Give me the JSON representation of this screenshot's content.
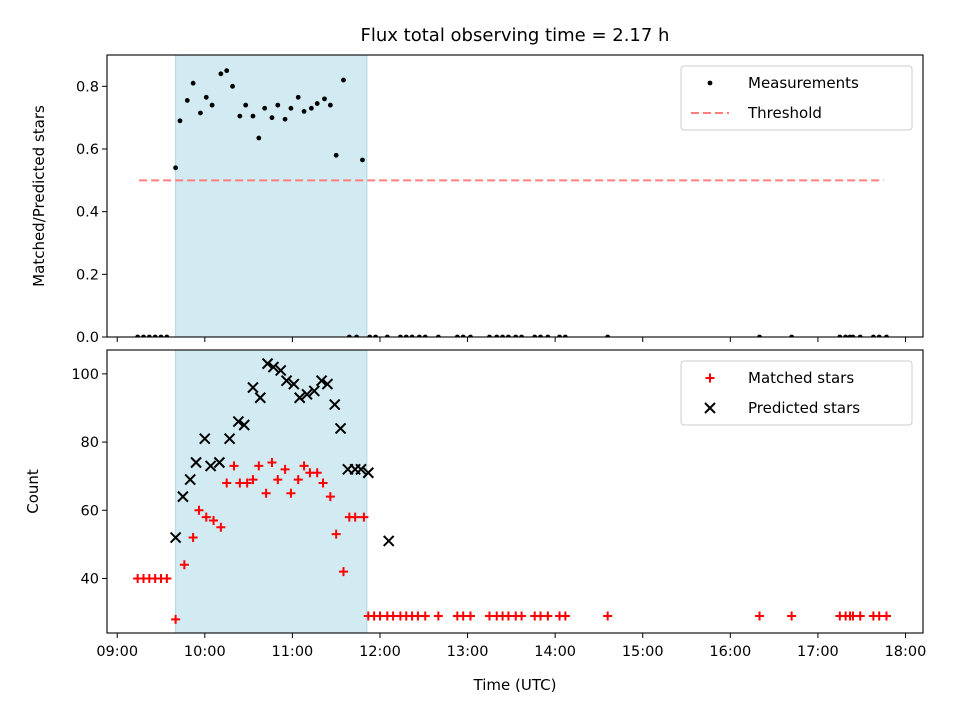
{
  "chart_data": [
    {
      "type": "scatter",
      "title": "Flux total observing time = 2.17 h",
      "ylabel": "Matched/Predicted stars",
      "xlabel": "",
      "x_unit": "time of day (UTC)",
      "xlim": [
        "08:53",
        "18:12"
      ],
      "ylim": [
        0.0,
        0.9
      ],
      "yticks": [
        "0.0",
        "0.2",
        "0.4",
        "0.6",
        "0.8"
      ],
      "xticks": [
        "09:00",
        "10:00",
        "11:00",
        "12:00",
        "13:00",
        "14:00",
        "15:00",
        "16:00",
        "17:00",
        "18:00"
      ],
      "xtick_labels_shown": false,
      "shaded_interval": [
        "09:40",
        "11:51"
      ],
      "shaded_color": "#add8e6",
      "legend": "top-right",
      "series": [
        {
          "name": "Measurements",
          "kind": "points",
          "color": "#000000",
          "x": [
            "09:14",
            "09:18",
            "09:22",
            "09:26",
            "09:30",
            "09:34",
            "09:40",
            "09:43",
            "09:48",
            "09:52",
            "09:57",
            "10:01",
            "10:05",
            "10:11",
            "10:15",
            "10:19",
            "10:24",
            "10:28",
            "10:33",
            "10:37",
            "10:41",
            "10:46",
            "10:50",
            "10:55",
            "10:59",
            "11:04",
            "11:08",
            "11:13",
            "11:17",
            "11:22",
            "11:26",
            "11:30",
            "11:35",
            "11:39",
            "11:44",
            "11:48",
            "11:53",
            "11:57",
            "12:05",
            "12:14",
            "12:18",
            "12:22",
            "12:27",
            "12:31",
            "12:40",
            "12:53",
            "12:57",
            "13:02",
            "13:15",
            "13:20",
            "13:24",
            "13:28",
            "13:33",
            "13:37",
            "13:46",
            "13:50",
            "13:55",
            "14:03",
            "14:07",
            "14:36",
            "16:20",
            "16:42",
            "17:15",
            "17:19",
            "17:22",
            "17:24",
            "17:29",
            "17:38",
            "17:42",
            "17:47"
          ],
          "y": [
            0,
            0,
            0,
            0,
            0,
            0,
            0.54,
            0.69,
            0.755,
            0.81,
            0.715,
            0.765,
            0.74,
            0.84,
            0.85,
            0.8,
            0.705,
            0.74,
            0.705,
            0.635,
            0.73,
            0.7,
            0.74,
            0.695,
            0.73,
            0.765,
            0.72,
            0.73,
            0.745,
            0.76,
            0.74,
            0.58,
            0.82,
            0,
            0,
            0.565,
            0,
            0,
            0,
            0,
            0,
            0,
            0,
            0,
            0,
            0,
            0,
            0,
            0,
            0,
            0,
            0,
            0,
            0,
            0,
            0,
            0,
            0,
            0,
            0,
            0,
            0,
            0,
            0,
            0,
            0,
            0,
            0,
            0,
            0
          ]
        },
        {
          "name": "Threshold",
          "kind": "dashed-line",
          "color": "#ff7f7f",
          "x": [
            "09:15",
            "17:45"
          ],
          "y": [
            0.5,
            0.5
          ]
        }
      ]
    },
    {
      "type": "scatter",
      "title": "",
      "ylabel": "Count",
      "xlabel": "Time (UTC)",
      "x_unit": "time of day (UTC)",
      "xlim": [
        "08:53",
        "18:12"
      ],
      "ylim": [
        24,
        107
      ],
      "yticks": [
        "40",
        "60",
        "80",
        "100"
      ],
      "xticks": [
        "09:00",
        "10:00",
        "11:00",
        "12:00",
        "13:00",
        "14:00",
        "15:00",
        "16:00",
        "17:00",
        "18:00"
      ],
      "xtick_labels_shown": true,
      "shaded_interval": [
        "09:40",
        "11:51"
      ],
      "shaded_color": "#add8e6",
      "legend": "top-right",
      "series": [
        {
          "name": "Matched stars",
          "marker": "plus",
          "color": "#ff0000",
          "x": [
            "09:14",
            "09:18",
            "09:22",
            "09:26",
            "09:30",
            "09:34",
            "09:40",
            "09:46",
            "09:52",
            "09:56",
            "10:01",
            "10:06",
            "10:11",
            "10:15",
            "10:20",
            "10:24",
            "10:29",
            "10:33",
            "10:37",
            "10:42",
            "10:46",
            "10:50",
            "10:55",
            "10:59",
            "11:04",
            "11:08",
            "11:12",
            "11:17",
            "11:21",
            "11:26",
            "11:30",
            "11:35",
            "11:39",
            "11:43",
            "11:49",
            "11:52",
            "11:56",
            "12:00",
            "12:05",
            "12:09",
            "12:14",
            "12:18",
            "12:22",
            "12:26",
            "12:31",
            "12:40",
            "12:53",
            "12:57",
            "13:02",
            "13:15",
            "13:20",
            "13:24",
            "13:28",
            "13:33",
            "13:37",
            "13:46",
            "13:50",
            "13:55",
            "14:03",
            "14:07",
            "14:36",
            "16:20",
            "16:42",
            "17:15",
            "17:19",
            "17:22",
            "17:24",
            "17:29",
            "17:38",
            "17:42",
            "17:47"
          ],
          "y": [
            40,
            40,
            40,
            40,
            40,
            40,
            28,
            44,
            52,
            60,
            58,
            57,
            55,
            68,
            73,
            68,
            68,
            69,
            73,
            65,
            74,
            69,
            72,
            65,
            69,
            73,
            71,
            71,
            68,
            64,
            53,
            42,
            58,
            58,
            58,
            29,
            29,
            29,
            29,
            29,
            29,
            29,
            29,
            29,
            29,
            29,
            29,
            29,
            29,
            29,
            29,
            29,
            29,
            29,
            29,
            29,
            29,
            29,
            29,
            29,
            29,
            29,
            29,
            29,
            29,
            29,
            29,
            29,
            29,
            29,
            29
          ]
        },
        {
          "name": "Predicted stars",
          "marker": "x",
          "color": "#000000",
          "x": [
            "09:40",
            "09:45",
            "09:50",
            "09:54",
            "10:00",
            "10:04",
            "10:10",
            "10:17",
            "10:23",
            "10:27",
            "10:33",
            "10:38",
            "10:43",
            "10:47",
            "10:52",
            "10:56",
            "11:01",
            "11:05",
            "11:10",
            "11:15",
            "11:20",
            "11:24",
            "11:29",
            "11:33",
            "11:38",
            "11:43",
            "11:47",
            "11:52",
            "12:06"
          ],
          "y": [
            52,
            64,
            69,
            74,
            81,
            73,
            74,
            81,
            86,
            85,
            96,
            93,
            103,
            102,
            101,
            98,
            97,
            93,
            94,
            95,
            98,
            97,
            91,
            84,
            72,
            72,
            72,
            71,
            51
          ]
        }
      ]
    }
  ]
}
